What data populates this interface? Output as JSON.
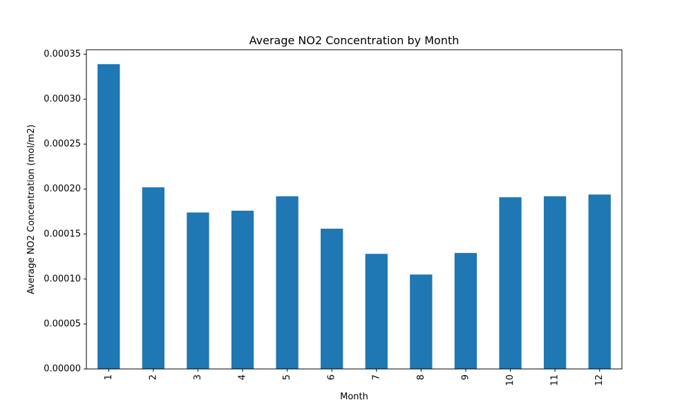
{
  "chart_data": {
    "type": "bar",
    "title": "Average NO2 Concentration by Month",
    "xlabel": "Month",
    "ylabel": "Average NO2 Concentration (mol/m2)",
    "categories": [
      "1",
      "2",
      "3",
      "4",
      "5",
      "6",
      "7",
      "8",
      "9",
      "10",
      "11",
      "12"
    ],
    "values": [
      0.000339,
      0.000202,
      0.000174,
      0.000176,
      0.000192,
      0.000156,
      0.000128,
      0.000105,
      0.000129,
      0.000191,
      0.000192,
      0.000194
    ],
    "ylim": [
      0,
      0.000355
    ],
    "yticks": [
      0,
      5e-05,
      0.0001,
      0.00015,
      0.0002,
      0.00025,
      0.0003,
      0.00035
    ],
    "ytick_labels": [
      "0.00000",
      "0.00005",
      "0.00010",
      "0.00015",
      "0.00020",
      "0.00025",
      "0.00030",
      "0.00035"
    ],
    "bar_color": "#1f77b4",
    "grid": false,
    "legend": false
  }
}
